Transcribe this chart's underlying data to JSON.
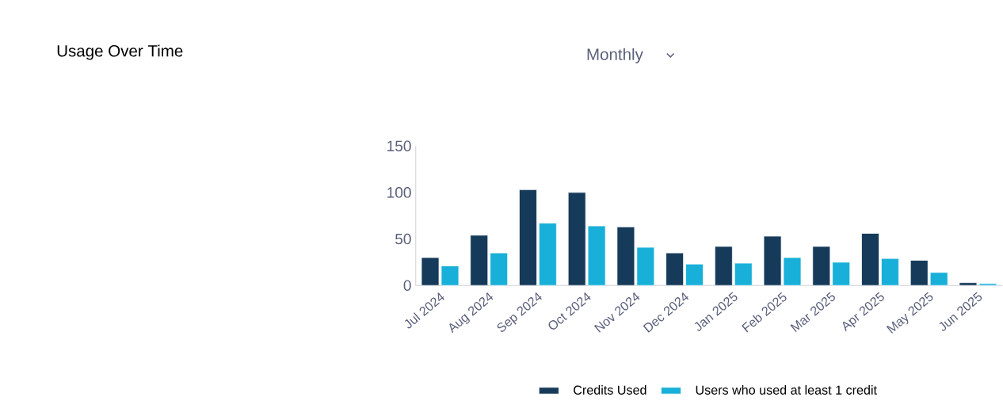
{
  "chart_data": {
    "type": "bar",
    "title": "Usage Over Time",
    "annotations": [
      "Monthly"
    ],
    "categories": [
      "Jul 2024",
      "Aug 2024",
      "Sep 2024",
      "Oct 2024",
      "Nov 2024",
      "Dec 2024",
      "Jan 2025",
      "Feb 2025",
      "Mar 2025",
      "Apr 2025",
      "May 2025",
      "Jun 2025"
    ],
    "series": [
      {
        "name": "Credits Used",
        "color": "#163a5a",
        "values": [
          30,
          54,
          103,
          100,
          63,
          35,
          42,
          53,
          42,
          56,
          27,
          3
        ]
      },
      {
        "name": "Users who used at least 1 credit",
        "color": "#18b0d8",
        "values": [
          21,
          35,
          67,
          64,
          41,
          23,
          24,
          30,
          25,
          29,
          14,
          2
        ]
      }
    ],
    "ylim": [
      0,
      150
    ],
    "yticks": [
      0,
      50,
      100,
      150
    ],
    "grid": false,
    "legend": "bottom"
  }
}
